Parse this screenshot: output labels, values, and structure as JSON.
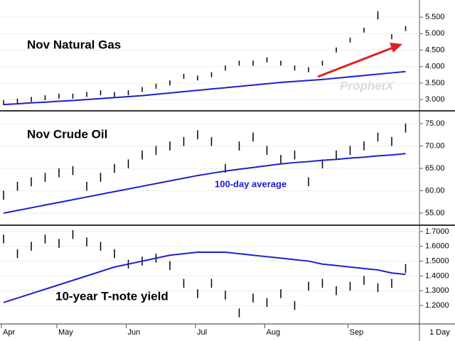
{
  "interval_label": "1 Day",
  "watermark": "ProphetX",
  "chart_data": [
    {
      "type": "ohlc",
      "title": "Nov Natural Gas",
      "bar_color": "#000000",
      "average_color": "#1f1fd0",
      "high": [
        2.98,
        3.03,
        3.08,
        3.13,
        3.18,
        3.18,
        3.23,
        3.28,
        3.23,
        3.28,
        3.38,
        3.48,
        3.58,
        3.78,
        3.73,
        3.83,
        4.03,
        4.18,
        4.18,
        4.28,
        4.18,
        4.03,
        3.98,
        4.18,
        4.58,
        4.88,
        5.18,
        5.68,
        4.98,
        5.23
      ],
      "low": [
        2.83,
        2.88,
        2.93,
        2.98,
        3.03,
        3.03,
        3.08,
        3.13,
        3.08,
        3.13,
        3.23,
        3.33,
        3.43,
        3.63,
        3.58,
        3.68,
        3.88,
        4.03,
        4.03,
        4.13,
        4.03,
        3.88,
        3.83,
        4.03,
        4.43,
        4.73,
        5.03,
        5.43,
        4.83,
        5.08
      ],
      "average": [
        2.85,
        2.87,
        2.9,
        2.92,
        2.95,
        2.97,
        3.0,
        3.03,
        3.06,
        3.09,
        3.12,
        3.16,
        3.2,
        3.24,
        3.28,
        3.32,
        3.36,
        3.4,
        3.44,
        3.48,
        3.52,
        3.55,
        3.58,
        3.61,
        3.65,
        3.69,
        3.73,
        3.77,
        3.81,
        3.85
      ],
      "ylim": [
        2.68,
        6.02
      ],
      "yticks": [
        {
          "value": 3,
          "label": "3.000"
        },
        {
          "value": 3.5,
          "label": "3.500"
        },
        {
          "value": 4,
          "label": "4.000"
        },
        {
          "value": 4.5,
          "label": "4.500"
        },
        {
          "value": 5,
          "label": "5.000"
        },
        {
          "value": 5.5,
          "label": "5.500"
        }
      ]
    },
    {
      "type": "ohlc",
      "title": "Nov Crude Oil",
      "annotation": "100-day average",
      "bar_color": "#000000",
      "average_color": "#1f1fd0",
      "high": [
        60,
        62,
        63,
        64,
        65,
        65.5,
        62,
        64,
        66,
        67,
        69,
        70,
        71,
        72,
        73.5,
        72,
        66,
        71,
        73,
        70,
        68,
        69,
        63,
        67,
        69,
        70,
        71,
        73,
        72,
        75
      ],
      "low": [
        58,
        60,
        61,
        62,
        63,
        63.5,
        60,
        62,
        64,
        65,
        67,
        68,
        69,
        70,
        71.5,
        70,
        64,
        69,
        71,
        68,
        66,
        67,
        61,
        65,
        67,
        68,
        69,
        71,
        70,
        73
      ],
      "average": [
        55,
        55.6,
        56.2,
        56.8,
        57.4,
        58,
        58.6,
        59.2,
        59.8,
        60.4,
        61,
        61.6,
        62.2,
        62.8,
        63.4,
        63.9,
        64.4,
        64.8,
        65.2,
        65.6,
        66,
        66.3,
        66.5,
        66.8,
        67,
        67.3,
        67.5,
        67.8,
        68,
        68.3
      ],
      "ylim": [
        52.3,
        77.7
      ],
      "yticks": [
        {
          "value": 55,
          "label": "55.00"
        },
        {
          "value": 60,
          "label": "60.00"
        },
        {
          "value": 65,
          "label": "65.00"
        },
        {
          "value": 70,
          "label": "70.00"
        },
        {
          "value": 75,
          "label": "75.00"
        }
      ]
    },
    {
      "type": "ohlc",
      "title": "10-year T-note yield",
      "bar_color": "#000000",
      "average_color": "#1f1fd0",
      "categories": [
        "Apr",
        null,
        null,
        null,
        "May",
        null,
        null,
        null,
        null,
        "Jun",
        null,
        null,
        null,
        null,
        "Jul",
        null,
        null,
        null,
        null,
        "Aug",
        null,
        null,
        null,
        null,
        null,
        "Sep",
        null,
        null,
        null,
        null
      ],
      "high": [
        1.68,
        1.58,
        1.63,
        1.68,
        1.65,
        1.71,
        1.66,
        1.63,
        1.58,
        1.51,
        1.53,
        1.55,
        1.5,
        1.38,
        1.31,
        1.38,
        1.3,
        1.18,
        1.28,
        1.25,
        1.31,
        1.23,
        1.36,
        1.38,
        1.33,
        1.36,
        1.4,
        1.35,
        1.38,
        1.48
      ],
      "low": [
        1.62,
        1.52,
        1.57,
        1.62,
        1.59,
        1.65,
        1.6,
        1.57,
        1.52,
        1.45,
        1.47,
        1.49,
        1.44,
        1.32,
        1.25,
        1.32,
        1.24,
        1.12,
        1.22,
        1.19,
        1.25,
        1.17,
        1.3,
        1.32,
        1.27,
        1.3,
        1.34,
        1.29,
        1.32,
        1.42
      ],
      "average": [
        1.22,
        1.25,
        1.28,
        1.31,
        1.34,
        1.37,
        1.4,
        1.43,
        1.46,
        1.48,
        1.5,
        1.52,
        1.54,
        1.55,
        1.56,
        1.56,
        1.56,
        1.55,
        1.54,
        1.53,
        1.52,
        1.51,
        1.5,
        1.48,
        1.47,
        1.46,
        1.45,
        1.44,
        1.42,
        1.41
      ],
      "ylim": [
        1.08,
        1.738
      ],
      "yticks": [
        {
          "value": 1.2,
          "label": "1.2000"
        },
        {
          "value": 1.3,
          "label": "1.3000"
        },
        {
          "value": 1.4,
          "label": "1.4000"
        },
        {
          "value": 1.5,
          "label": "1.5000"
        },
        {
          "value": 1.6,
          "label": "1.6000"
        },
        {
          "value": 1.7,
          "label": "1.7000"
        }
      ]
    }
  ]
}
